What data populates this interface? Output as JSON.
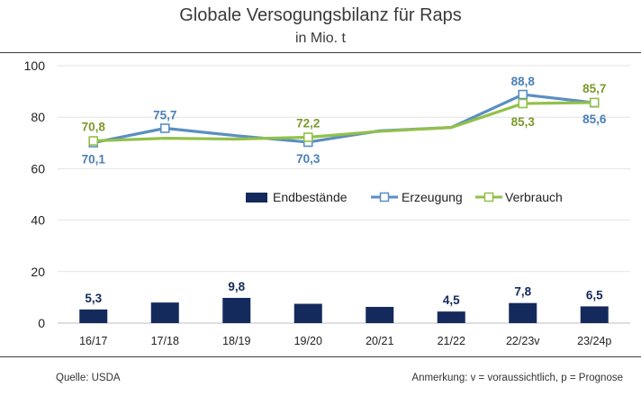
{
  "title": "Globale Versogungsbilanz für Raps",
  "subtitle": "in Mio. t",
  "source": "Quelle: USDA",
  "note": "Anmerkung: v = voraussichtlich, p = Prognose",
  "colors": {
    "bars": "#152a5c",
    "erzeugung": "#5b8ec2",
    "verbrauch": "#92c04a",
    "verbrauch_label": "#7b9a2c",
    "erzeugung_label": "#4a7fb8"
  },
  "chart_data": {
    "type": "bar+line",
    "title": "Globale Versogungsbilanz für Raps",
    "subtitle": "in Mio. t",
    "categories": [
      "16/17",
      "17/18",
      "18/19",
      "19/20",
      "20/21",
      "21/22",
      "22/23v",
      "23/24p"
    ],
    "ylim": [
      0,
      100
    ],
    "yticks": [
      0,
      20,
      40,
      60,
      80,
      100
    ],
    "series": [
      {
        "name": "Endbestände",
        "kind": "bar",
        "values": [
          5.3,
          8.0,
          9.8,
          7.5,
          6.3,
          4.5,
          7.8,
          6.5
        ],
        "labels": [
          "5,3",
          "",
          "9,8",
          "",
          "",
          "4,5",
          "7,8",
          "6,5"
        ]
      },
      {
        "name": "Erzeugung",
        "kind": "line",
        "values": [
          70.1,
          75.7,
          72.8,
          70.3,
          74.7,
          76.0,
          88.8,
          85.6
        ],
        "markers": [
          true,
          true,
          false,
          true,
          false,
          false,
          true,
          true
        ],
        "labels": [
          "70,1",
          "75,7",
          "",
          "70,3",
          "",
          "",
          "88,8",
          "85,6"
        ]
      },
      {
        "name": "Verbrauch",
        "kind": "line",
        "values": [
          70.8,
          71.8,
          71.5,
          72.2,
          74.5,
          76.0,
          85.3,
          85.7
        ],
        "markers": [
          true,
          false,
          false,
          true,
          false,
          false,
          true,
          true
        ],
        "labels": [
          "70,8",
          "",
          "",
          "72,2",
          "",
          "",
          "85,3",
          "85,7"
        ]
      }
    ],
    "legend": [
      "Endbestände",
      "Erzeugung",
      "Verbrauch"
    ]
  }
}
